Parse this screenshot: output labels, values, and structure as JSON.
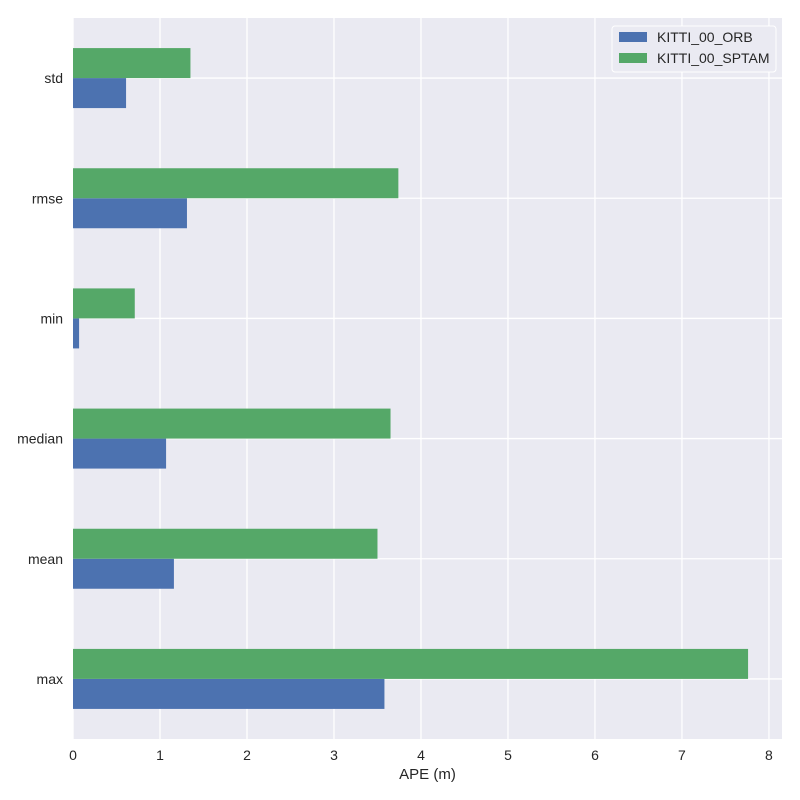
{
  "chart_data": {
    "type": "bar",
    "orientation": "horizontal",
    "title": "",
    "xlabel": "APE (m)",
    "ylabel": "",
    "categories": [
      "max",
      "mean",
      "median",
      "min",
      "rmse",
      "std"
    ],
    "series": [
      {
        "name": "KITTI_00_ORB",
        "color": "#4c72b0",
        "values": [
          3.58,
          1.16,
          1.07,
          0.07,
          1.31,
          0.61
        ]
      },
      {
        "name": "KITTI_00_SPTAM",
        "color": "#55a868",
        "values": [
          7.76,
          3.5,
          3.65,
          0.71,
          3.74,
          1.35
        ]
      }
    ],
    "xlim": [
      0,
      8.15
    ],
    "xticks": [
      0,
      1,
      2,
      3,
      4,
      5,
      6,
      7,
      8
    ],
    "grid": true,
    "legend_position": "top-right",
    "background_color": "#eaeaf2",
    "grid_color": "#ffffff"
  }
}
